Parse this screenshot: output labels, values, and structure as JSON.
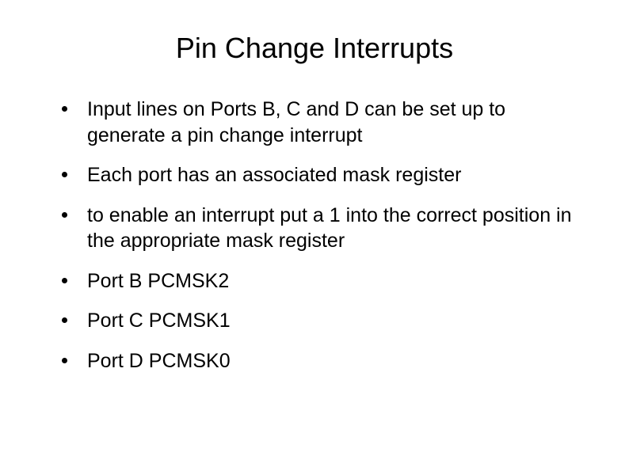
{
  "slide": {
    "title": "Pin Change Interrupts",
    "bullets": [
      "Input lines on Ports B, C and D can be set up to generate a pin change interrupt",
      "Each port has an associated mask register",
      "to enable an interrupt put a 1 into the correct position in the appropriate mask register",
      "Port B PCMSK2",
      "Port C PCMSK1",
      "Port D PCMSK0"
    ],
    "title_fontsize": 36,
    "bullet_fontsize": 25,
    "text_color": "#000000",
    "background_color": "#ffffff"
  }
}
